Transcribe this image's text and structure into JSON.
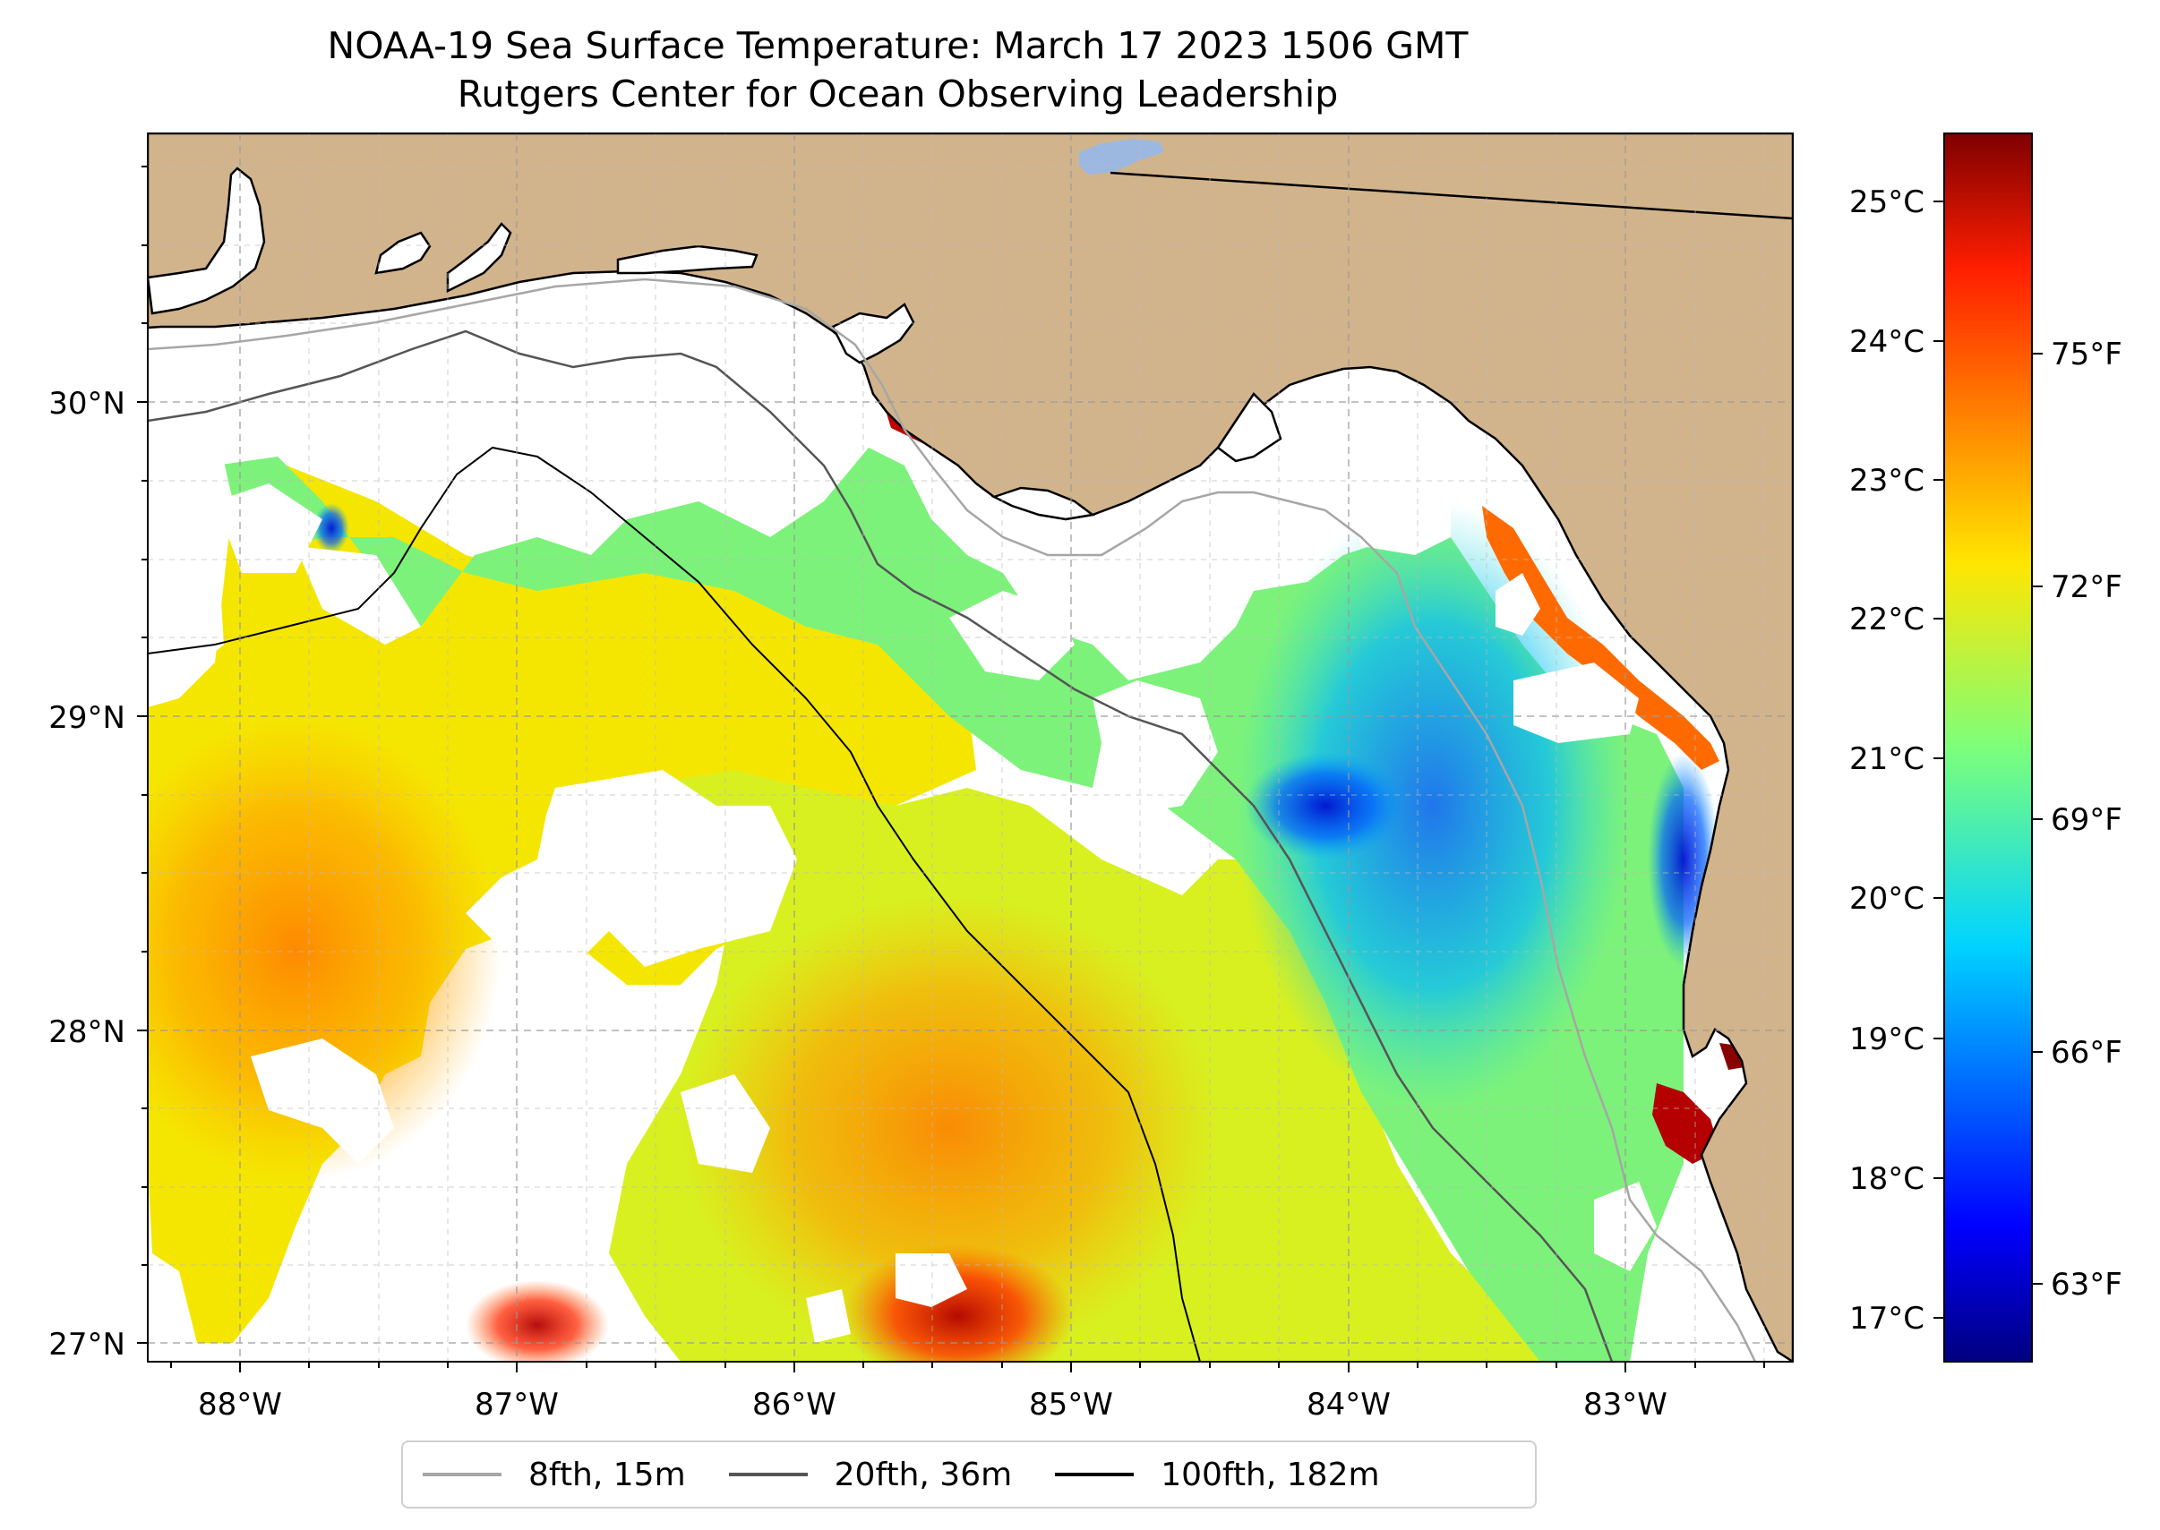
{
  "title": {
    "line1": "NOAA-19 Sea Surface Temperature: March 17 2023 1506 GMT",
    "line2": "Rutgers Center for Ocean Observing Leadership"
  },
  "map": {
    "lat_labels": [
      "30°N",
      "29°N",
      "28°N",
      "27°N"
    ],
    "lon_labels": [
      "88°W",
      "87°W",
      "86°W",
      "85°W",
      "84°W",
      "83°W"
    ],
    "colors": {
      "land": "#D2B48C",
      "no_data": "#ffffff",
      "lake": "#9db8e0"
    }
  },
  "colorbar": {
    "celsius_labels": [
      "25°C",
      "24°C",
      "23°C",
      "22°C",
      "21°C",
      "20°C",
      "19°C",
      "18°C",
      "17°C"
    ],
    "fahrenheit_labels": [
      "75°F",
      "72°F",
      "69°F",
      "66°F",
      "63°F"
    ],
    "range_celsius": [
      16.7,
      25.5
    ]
  },
  "legend": {
    "items": [
      {
        "label": "8fth, 15m",
        "color": "#a6a6a6"
      },
      {
        "label": "20fth, 36m",
        "color": "#555555"
      },
      {
        "label": "100fth, 182m",
        "color": "#000000"
      }
    ]
  }
}
